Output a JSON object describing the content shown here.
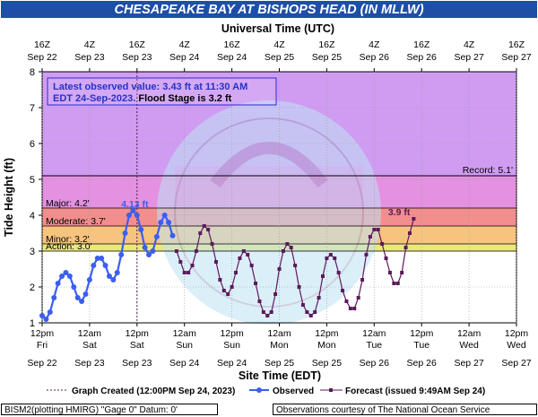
{
  "chart_data": {
    "type": "line",
    "title": "CHESAPEAKE BAY AT BISHOPS HEAD (IN MLLW)",
    "top_axis_label": "Universal Time (UTC)",
    "xlabel": "Site Time (EDT)",
    "ylabel": "Tide Height (ft)",
    "ylim": [
      1,
      8
    ],
    "y_ticks": [
      "1",
      "2",
      "3",
      "4",
      "5",
      "6",
      "7",
      "8"
    ],
    "x_range_hours": [
      0,
      120
    ],
    "bottom_ticks": [
      {
        "t1": "12pm",
        "t2": "Fri",
        "t3": "Sep 22"
      },
      {
        "t1": "12am",
        "t2": "Sat",
        "t3": "Sep 23"
      },
      {
        "t1": "12pm",
        "t2": "Sat",
        "t3": "Sep 23"
      },
      {
        "t1": "12am",
        "t2": "Sun",
        "t3": "Sep 24"
      },
      {
        "t1": "12pm",
        "t2": "Sun",
        "t3": "Sep 24"
      },
      {
        "t1": "12am",
        "t2": "Mon",
        "t3": "Sep 25"
      },
      {
        "t1": "12pm",
        "t2": "Mon",
        "t3": "Sep 25"
      },
      {
        "t1": "12am",
        "t2": "Tue",
        "t3": "Sep 26"
      },
      {
        "t1": "12pm",
        "t2": "Tue",
        "t3": "Sep 26"
      },
      {
        "t1": "12am",
        "t2": "Wed",
        "t3": "Sep 27"
      },
      {
        "t1": "12pm",
        "t2": "Wed",
        "t3": "Sep 27"
      }
    ],
    "top_ticks": [
      {
        "t1": "16Z",
        "t2": "Sep 22"
      },
      {
        "t1": "4Z",
        "t2": "Sep 23"
      },
      {
        "t1": "16Z",
        "t2": "Sep 23"
      },
      {
        "t1": "4Z",
        "t2": "Sep 24"
      },
      {
        "t1": "16Z",
        "t2": "Sep 24"
      },
      {
        "t1": "4Z",
        "t2": "Sep 25"
      },
      {
        "t1": "16Z",
        "t2": "Sep 25"
      },
      {
        "t1": "4Z",
        "t2": "Sep 26"
      },
      {
        "t1": "16Z",
        "t2": "Sep 26"
      },
      {
        "t1": "4Z",
        "t2": "Sep 27"
      },
      {
        "t1": "16Z",
        "t2": "Sep 27"
      }
    ],
    "bands": [
      {
        "name": "Record",
        "label": "Record: 5.1'",
        "from": 5.1,
        "to": 8,
        "color": "#d09cf2"
      },
      {
        "name": "Major",
        "label": "Major: 4.2'",
        "from": 4.2,
        "to": 5.1,
        "color": "#e391e0"
      },
      {
        "name": "Moderate",
        "label": "Moderate: 3.7'",
        "from": 3.7,
        "to": 4.2,
        "color": "#f28e8e"
      },
      {
        "name": "Minor",
        "label": "Minor: 3.2'",
        "from": 3.2,
        "to": 3.7,
        "color": "#f6c47f"
      },
      {
        "name": "Action",
        "label": "Action: 3.0'",
        "from": 3.0,
        "to": 3.2,
        "color": "#ebe87a"
      }
    ],
    "record_line": 5.1,
    "record_label": "Record: 5.1'",
    "graph_created_hour": 24,
    "info_line1": "Latest observed value: 3.43 ft at 11:30 AM",
    "info_line2a": "EDT 24-Sep-2023.",
    "info_line2b": " Flood Stage is 3.2 ft",
    "observed_peak_label": "4.13 ft",
    "forecast_peak_label": "3.9 ft",
    "legend": {
      "created": "Graph Created (12:00PM Sep 24, 2023)",
      "observed": "Observed",
      "forecast": "Forecast (issued 9:49AM Sep 24)"
    },
    "colors": {
      "observed": "#3a5ef0",
      "forecast": "#5c1a5c",
      "record_line": "#000000"
    },
    "series": [
      {
        "name": "Observed",
        "points": [
          [
            0,
            1.2
          ],
          [
            1,
            1.1
          ],
          [
            2,
            1.3
          ],
          [
            3,
            1.7
          ],
          [
            4,
            2.1
          ],
          [
            5,
            2.3
          ],
          [
            6,
            2.4
          ],
          [
            7,
            2.3
          ],
          [
            8,
            2.0
          ],
          [
            9,
            1.7
          ],
          [
            10,
            1.6
          ],
          [
            11,
            1.8
          ],
          [
            12,
            2.2
          ],
          [
            13,
            2.6
          ],
          [
            14,
            2.8
          ],
          [
            15,
            2.8
          ],
          [
            16,
            2.6
          ],
          [
            17,
            2.3
          ],
          [
            18,
            2.2
          ],
          [
            19,
            2.4
          ],
          [
            20,
            2.9
          ],
          [
            21,
            3.5
          ],
          [
            22,
            4.0
          ],
          [
            23,
            4.13
          ],
          [
            24,
            4.0
          ],
          [
            25,
            3.6
          ],
          [
            26,
            3.1
          ],
          [
            27,
            2.9
          ],
          [
            28,
            3.0
          ],
          [
            29,
            3.4
          ],
          [
            30,
            3.8
          ],
          [
            31,
            4.0
          ],
          [
            32,
            3.8
          ],
          [
            33,
            3.43
          ]
        ]
      },
      {
        "name": "Forecast",
        "points": [
          [
            34,
            3.0
          ],
          [
            35,
            2.7
          ],
          [
            36,
            2.4
          ],
          [
            37,
            2.4
          ],
          [
            38,
            2.6
          ],
          [
            39,
            3.0
          ],
          [
            40,
            3.5
          ],
          [
            41,
            3.7
          ],
          [
            42,
            3.6
          ],
          [
            43,
            3.2
          ],
          [
            44,
            2.7
          ],
          [
            45,
            2.2
          ],
          [
            46,
            1.9
          ],
          [
            47,
            1.8
          ],
          [
            48,
            2.0
          ],
          [
            49,
            2.4
          ],
          [
            50,
            2.8
          ],
          [
            51,
            3.0
          ],
          [
            52,
            2.9
          ],
          [
            53,
            2.6
          ],
          [
            54,
            2.1
          ],
          [
            55,
            1.6
          ],
          [
            56,
            1.3
          ],
          [
            57,
            1.2
          ],
          [
            58,
            1.3
          ],
          [
            59,
            1.8
          ],
          [
            60,
            2.5
          ],
          [
            61,
            3.0
          ],
          [
            62,
            3.2
          ],
          [
            63,
            3.1
          ],
          [
            64,
            2.6
          ],
          [
            65,
            2.0
          ],
          [
            66,
            1.5
          ],
          [
            67,
            1.3
          ],
          [
            68,
            1.2
          ],
          [
            69,
            1.3
          ],
          [
            70,
            1.7
          ],
          [
            71,
            2.3
          ],
          [
            72,
            2.8
          ],
          [
            73,
            2.9
          ],
          [
            74,
            2.8
          ],
          [
            75,
            2.4
          ],
          [
            76,
            1.9
          ],
          [
            77,
            1.6
          ],
          [
            78,
            1.4
          ],
          [
            79,
            1.4
          ],
          [
            80,
            1.7
          ],
          [
            81,
            2.2
          ],
          [
            82,
            2.9
          ],
          [
            83,
            3.4
          ],
          [
            84,
            3.6
          ],
          [
            85,
            3.6
          ],
          [
            86,
            3.2
          ],
          [
            87,
            2.8
          ],
          [
            88,
            2.4
          ],
          [
            89,
            2.1
          ],
          [
            90,
            2.1
          ],
          [
            91,
            2.4
          ],
          [
            92,
            3.1
          ],
          [
            93,
            3.5
          ],
          [
            94,
            3.9
          ]
        ]
      }
    ]
  },
  "footer": {
    "left": "BISM2(plotting HMIRG) \"Gage 0\" Datum: 0'",
    "right": "Observations courtesy of The National Ocean Service"
  }
}
